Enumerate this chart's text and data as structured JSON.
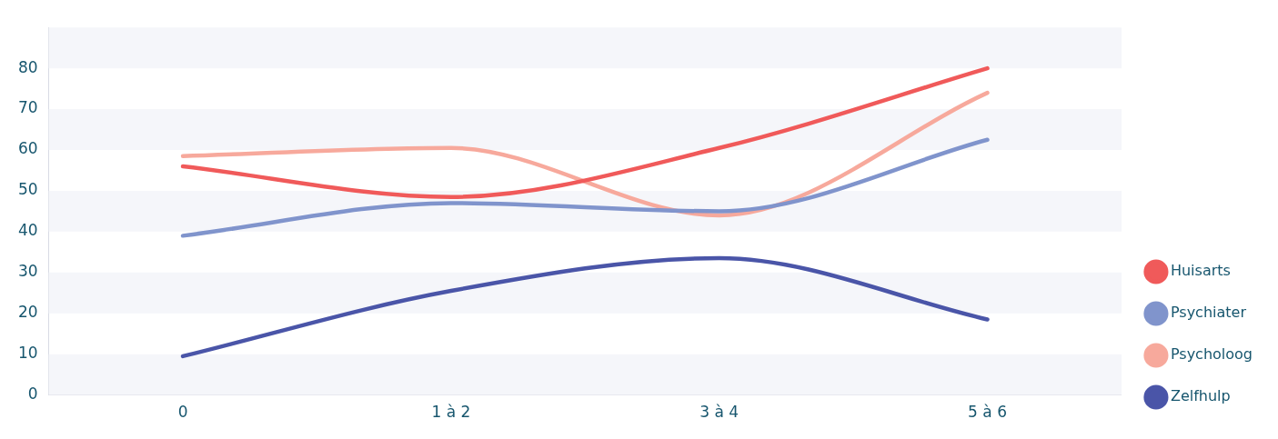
{
  "chart_data": {
    "type": "line",
    "categories": [
      "0",
      "1 à 2",
      "3 à 4",
      "5 à 6"
    ],
    "series": [
      {
        "name": "Huisarts",
        "color": "#f05a5a",
        "values": [
          56,
          48.5,
          60.5,
          80
        ]
      },
      {
        "name": "Psychiater",
        "color": "#8094cc",
        "values": [
          39,
          47,
          45,
          62.5
        ]
      },
      {
        "name": "Psycholoog",
        "color": "#f7a99c",
        "values": [
          58.5,
          60.5,
          44,
          74
        ]
      },
      {
        "name": "Zelfhulp",
        "color": "#4a55a8",
        "values": [
          9.5,
          25.5,
          33.5,
          18.5
        ]
      }
    ],
    "ylim": [
      0,
      90
    ],
    "yticks": [
      0,
      10,
      20,
      30,
      40,
      50,
      60,
      70,
      80
    ],
    "bands": [
      {
        "axis": "y",
        "from": 0,
        "to": 10,
        "color": "#f5f6fa"
      },
      {
        "axis": "y",
        "from": 20,
        "to": 30,
        "color": "#f5f6fa"
      },
      {
        "axis": "y",
        "from": 40,
        "to": 50,
        "color": "#f5f6fa"
      },
      {
        "axis": "y",
        "from": 60,
        "to": 70,
        "color": "#f5f6fa"
      },
      {
        "axis": "y",
        "from": 80,
        "to": 90,
        "color": "#f5f6fa"
      }
    ],
    "legend": "right",
    "marker": "none",
    "line_style": "solid"
  }
}
